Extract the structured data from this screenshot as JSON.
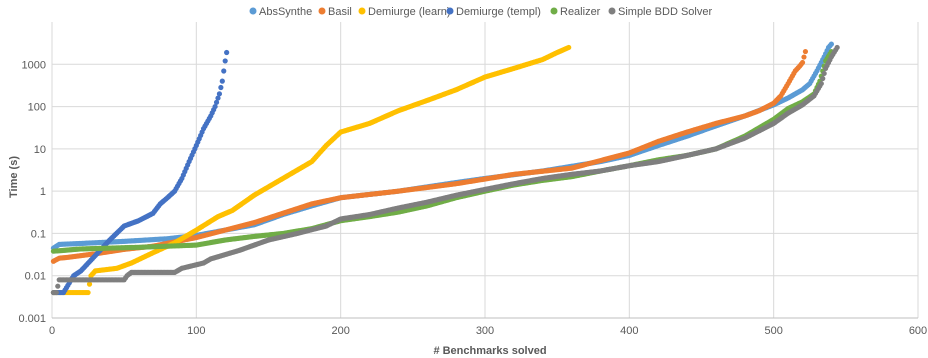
{
  "chart_data": {
    "type": "scatter",
    "title": "",
    "xlabel": "# Benchmarks solved",
    "ylabel": "Time (s)",
    "xlim": [
      0,
      600
    ],
    "ylim": [
      0.001,
      10000
    ],
    "y_scale": "log",
    "x_ticks": [
      0,
      100,
      200,
      300,
      400,
      500,
      600
    ],
    "y_ticks": [
      0.001,
      0.01,
      0.1,
      1,
      10,
      100,
      1000
    ],
    "x_tick_labels": [
      "0",
      "100",
      "200",
      "300",
      "400",
      "500",
      "600"
    ],
    "y_tick_labels": [
      "0.001",
      "0.01",
      "0.1",
      "1",
      "10",
      "100",
      "1000"
    ],
    "grid": true,
    "legend_position": "top",
    "series": [
      {
        "name": "AbsSynthe",
        "color": "#5b9bd5",
        "points": [
          [
            1,
            0.045
          ],
          [
            5,
            0.055
          ],
          [
            20,
            0.058
          ],
          [
            50,
            0.065
          ],
          [
            80,
            0.075
          ],
          [
            100,
            0.09
          ],
          [
            120,
            0.12
          ],
          [
            140,
            0.16
          ],
          [
            160,
            0.28
          ],
          [
            180,
            0.45
          ],
          [
            200,
            0.7
          ],
          [
            240,
            1.0
          ],
          [
            280,
            1.6
          ],
          [
            300,
            2.0
          ],
          [
            340,
            3.0
          ],
          [
            380,
            5.0
          ],
          [
            400,
            7.0
          ],
          [
            420,
            12
          ],
          [
            440,
            20
          ],
          [
            460,
            35
          ],
          [
            480,
            60
          ],
          [
            500,
            110
          ],
          [
            510,
            160
          ],
          [
            520,
            250
          ],
          [
            525,
            350
          ],
          [
            530,
            700
          ],
          [
            535,
            1500
          ],
          [
            538,
            2500
          ],
          [
            540,
            3000
          ]
        ]
      },
      {
        "name": "Basil",
        "color": "#ed7d31",
        "points": [
          [
            1,
            0.022
          ],
          [
            5,
            0.026
          ],
          [
            10,
            0.027
          ],
          [
            30,
            0.033
          ],
          [
            50,
            0.042
          ],
          [
            70,
            0.05
          ],
          [
            100,
            0.08
          ],
          [
            120,
            0.12
          ],
          [
            140,
            0.18
          ],
          [
            160,
            0.3
          ],
          [
            180,
            0.5
          ],
          [
            200,
            0.7
          ],
          [
            240,
            1.0
          ],
          [
            280,
            1.5
          ],
          [
            320,
            2.5
          ],
          [
            360,
            3.5
          ],
          [
            400,
            8.0
          ],
          [
            420,
            15
          ],
          [
            440,
            25
          ],
          [
            460,
            40
          ],
          [
            480,
            60
          ],
          [
            490,
            80
          ],
          [
            500,
            120
          ],
          [
            505,
            180
          ],
          [
            510,
            350
          ],
          [
            515,
            700
          ],
          [
            518,
            900
          ],
          [
            520,
            1100
          ],
          [
            522,
            2000
          ]
        ]
      },
      {
        "name": "Demiurge (learn)",
        "color": "#ffc000",
        "points": [
          [
            1,
            0.004
          ],
          [
            25,
            0.004
          ],
          [
            27,
            0.01
          ],
          [
            30,
            0.013
          ],
          [
            45,
            0.015
          ],
          [
            55,
            0.02
          ],
          [
            70,
            0.035
          ],
          [
            85,
            0.06
          ],
          [
            100,
            0.12
          ],
          [
            115,
            0.25
          ],
          [
            125,
            0.35
          ],
          [
            140,
            0.8
          ],
          [
            160,
            2.0
          ],
          [
            180,
            5.0
          ],
          [
            190,
            12
          ],
          [
            200,
            25
          ],
          [
            220,
            40
          ],
          [
            240,
            80
          ],
          [
            260,
            140
          ],
          [
            280,
            250
          ],
          [
            300,
            500
          ],
          [
            320,
            800
          ],
          [
            340,
            1300
          ],
          [
            350,
            1900
          ],
          [
            358,
            2500
          ]
        ]
      },
      {
        "name": "Demiurge (templ)",
        "color": "#4472c4",
        "points": [
          [
            1,
            0.004
          ],
          [
            8,
            0.004
          ],
          [
            15,
            0.01
          ],
          [
            20,
            0.013
          ],
          [
            30,
            0.03
          ],
          [
            40,
            0.07
          ],
          [
            50,
            0.15
          ],
          [
            60,
            0.2
          ],
          [
            70,
            0.3
          ],
          [
            75,
            0.5
          ],
          [
            80,
            0.7
          ],
          [
            85,
            1.0
          ],
          [
            90,
            2.0
          ],
          [
            95,
            5.0
          ],
          [
            100,
            12
          ],
          [
            105,
            30
          ],
          [
            110,
            60
          ],
          [
            113,
            100
          ],
          [
            116,
            200
          ],
          [
            118,
            400
          ],
          [
            120,
            1200
          ],
          [
            121,
            1900
          ]
        ]
      },
      {
        "name": "Realizer",
        "color": "#70ad47",
        "points": [
          [
            1,
            0.038
          ],
          [
            20,
            0.043
          ],
          [
            40,
            0.045
          ],
          [
            60,
            0.047
          ],
          [
            80,
            0.05
          ],
          [
            100,
            0.053
          ],
          [
            120,
            0.07
          ],
          [
            140,
            0.085
          ],
          [
            160,
            0.1
          ],
          [
            180,
            0.13
          ],
          [
            200,
            0.2
          ],
          [
            220,
            0.25
          ],
          [
            240,
            0.32
          ],
          [
            260,
            0.45
          ],
          [
            280,
            0.7
          ],
          [
            300,
            1.0
          ],
          [
            320,
            1.4
          ],
          [
            340,
            1.8
          ],
          [
            360,
            2.2
          ],
          [
            380,
            3.0
          ],
          [
            400,
            4.0
          ],
          [
            420,
            5.5
          ],
          [
            440,
            7.0
          ],
          [
            460,
            10
          ],
          [
            480,
            20
          ],
          [
            500,
            50
          ],
          [
            510,
            90
          ],
          [
            520,
            130
          ],
          [
            528,
            200
          ],
          [
            532,
            400
          ],
          [
            536,
            1200
          ],
          [
            540,
            2000
          ]
        ]
      },
      {
        "name": "Simple BDD Solver",
        "color": "#7f7f7f",
        "points": [
          [
            1,
            0.004
          ],
          [
            3,
            0.004
          ],
          [
            5,
            0.008
          ],
          [
            50,
            0.008
          ],
          [
            52,
            0.01
          ],
          [
            55,
            0.012
          ],
          [
            85,
            0.012
          ],
          [
            90,
            0.015
          ],
          [
            105,
            0.02
          ],
          [
            110,
            0.025
          ],
          [
            130,
            0.04
          ],
          [
            150,
            0.07
          ],
          [
            170,
            0.1
          ],
          [
            190,
            0.15
          ],
          [
            200,
            0.22
          ],
          [
            220,
            0.28
          ],
          [
            240,
            0.4
          ],
          [
            260,
            0.55
          ],
          [
            280,
            0.8
          ],
          [
            300,
            1.1
          ],
          [
            320,
            1.5
          ],
          [
            340,
            2.0
          ],
          [
            360,
            2.5
          ],
          [
            380,
            3.0
          ],
          [
            400,
            4.0
          ],
          [
            420,
            5.0
          ],
          [
            440,
            7.0
          ],
          [
            460,
            10
          ],
          [
            480,
            18
          ],
          [
            500,
            40
          ],
          [
            510,
            70
          ],
          [
            520,
            110
          ],
          [
            528,
            180
          ],
          [
            533,
            350
          ],
          [
            536,
            800
          ],
          [
            540,
            1500
          ],
          [
            544,
            2500
          ]
        ]
      }
    ]
  }
}
